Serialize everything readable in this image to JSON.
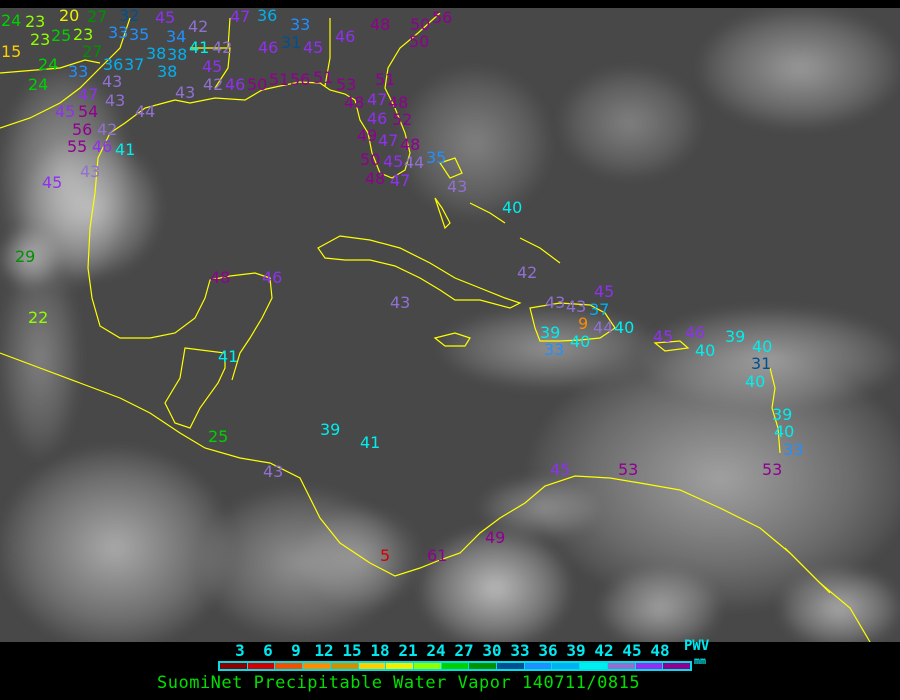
{
  "legend": {
    "ticks": [
      "3",
      "6",
      "9",
      "12",
      "15",
      "18",
      "21",
      "24",
      "27",
      "30",
      "33",
      "36",
      "39",
      "42",
      "45",
      "48"
    ],
    "colors": [
      "#8b0000",
      "#d40000",
      "#f05000",
      "#ff8c00",
      "#d09000",
      "#ffd000",
      "#f0f000",
      "#90ff00",
      "#00d000",
      "#009000",
      "#005090",
      "#2090ff",
      "#00b0f0",
      "#00eeee",
      "#9070d0",
      "#9030f0",
      "#900090"
    ],
    "variable": "PWV",
    "units": "mm"
  },
  "title": "SuomiNet Precipitable Water Vapor 140711/0815",
  "coastline_color": "#ffff00",
  "stations": [
    24,
    23,
    20,
    23,
    25,
    27,
    23,
    15,
    27,
    24,
    33,
    24,
    36,
    37,
    32,
    33,
    35,
    38,
    38,
    38,
    34,
    41,
    42,
    45,
    42,
    45,
    42,
    43,
    43,
    45,
    54,
    47,
    56,
    42,
    55,
    46,
    41,
    43,
    45,
    44,
    43,
    47,
    36,
    33,
    31,
    46,
    45,
    46,
    48,
    50,
    56,
    50,
    46,
    50,
    51,
    56,
    51,
    53,
    48,
    47,
    46,
    48,
    51,
    52,
    49,
    47,
    48,
    44,
    50,
    48,
    45,
    47,
    35,
    43,
    40,
    29,
    22,
    48,
    46,
    43,
    42,
    43,
    43,
    37,
    9,
    45,
    39,
    40,
    33,
    44,
    40,
    45,
    46,
    40,
    39,
    40,
    31,
    40,
    39,
    40,
    33,
    53,
    45,
    53,
    41,
    25,
    39,
    41,
    43,
    49,
    61,
    5
  ]
}
